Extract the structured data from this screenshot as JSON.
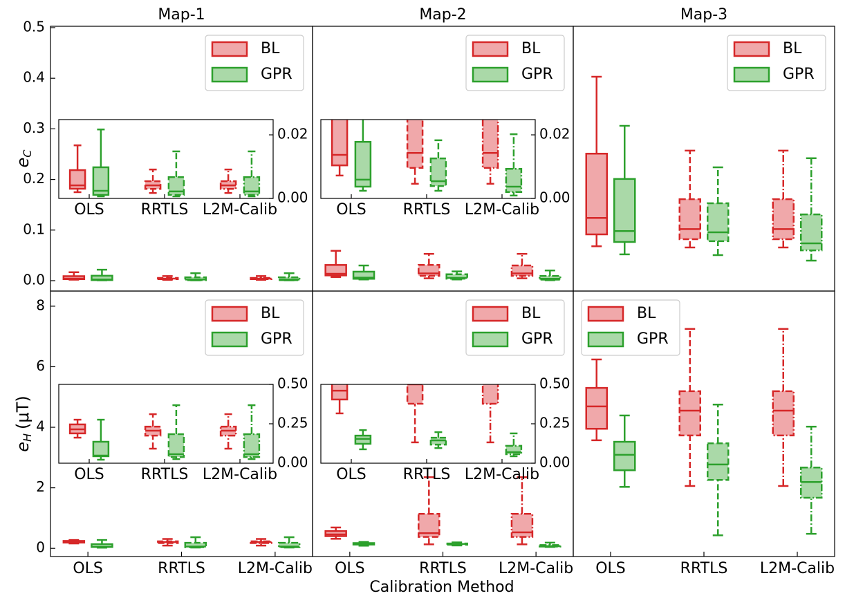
{
  "chart_data": [
    {
      "type": "box",
      "title": "Map-1",
      "ylabel": {
        "base": "e",
        "sub": "C"
      },
      "ylim": [
        -0.0205,
        0.5027
      ],
      "yticks": [
        {
          "value": 0,
          "label": "0.0"
        },
        0.1,
        0.2,
        0.3,
        0.4,
        0.5
      ],
      "legend": "upper right",
      "series": [
        {
          "name": "BL",
          "color": "#d62728",
          "fill": "#f0a8aa",
          "values": [
            [
              0.00196,
              0.00304,
              0.0041,
              0.0089,
              0.0167
            ],
            [
              0.0017,
              0.003,
              0.0041,
              0.0054,
              0.0091
            ],
            [
              0.0017,
              0.003,
              0.0041,
              0.0054,
              0.0091
            ]
          ]
        },
        {
          "name": "GPR",
          "color": "#2ca02c",
          "fill": "#aad9a8",
          "values": [
            [
              0.00065,
              0.0011,
              0.0024,
              0.0098,
              0.0217
            ],
            [
              0.00065,
              0.0011,
              0.0022,
              0.0067,
              0.0148
            ],
            [
              0.00065,
              0.0011,
              0.0022,
              0.0067,
              0.0148
            ]
          ]
        }
      ],
      "inset": {
        "categories": [
          "OLS",
          "RRTLS",
          "L2M-Calib"
        ],
        "ylim": [
          0,
          0.0248
        ],
        "yticks": [
          {
            "value": 0,
            "label": "0.00"
          },
          {
            "value": 0.02,
            "label": "0.02"
          }
        ]
      }
    },
    {
      "type": "box",
      "title": "Map-2",
      "ylim": [
        -0.0205,
        0.5027
      ],
      "legend": "upper right",
      "series": [
        {
          "name": "BL",
          "color": "#d62728",
          "fill": "#f0a8aa",
          "values": [
            [
              0.0072,
              0.0104,
              0.0137,
              0.031,
              0.059
            ],
            [
              0.0046,
              0.0096,
              0.0143,
              0.031,
              0.053
            ],
            [
              0.0046,
              0.0096,
              0.0143,
              0.03,
              0.053
            ]
          ]
        },
        {
          "name": "GPR",
          "color": "#2ca02c",
          "fill": "#aad9a8",
          "values": [
            [
              0.0024,
              0.0037,
              0.0059,
              0.0178,
              0.03
            ],
            [
              0.0024,
              0.0039,
              0.0054,
              0.0126,
              0.0183
            ],
            [
              0.0009,
              0.002,
              0.0037,
              0.0093,
              0.0202
            ]
          ]
        }
      ],
      "inset": {
        "categories": [
          "OLS",
          "RRTLS",
          "L2M-Calib"
        ],
        "ylim": [
          0,
          0.0248
        ],
        "yticks": [
          {
            "value": 0,
            "label": "0.00"
          },
          {
            "value": 0.02,
            "label": "0.02"
          }
        ]
      }
    },
    {
      "type": "box",
      "title": "Map-3",
      "ylim": [
        -0.0205,
        0.5027
      ],
      "legend": "upper right",
      "series": [
        {
          "name": "BL",
          "color": "#d62728",
          "fill": "#f0a8aa",
          "values": [
            [
              0.068,
              0.0915,
              0.124,
              0.251,
              0.403
            ],
            [
              0.0656,
              0.082,
              0.102,
              0.161,
              0.257
            ],
            [
              0.0656,
              0.082,
              0.102,
              0.161,
              0.257
            ]
          ]
        },
        {
          "name": "GPR",
          "color": "#2ca02c",
          "fill": "#aad9a8",
          "values": [
            [
              0.052,
              0.0765,
              0.098,
              0.201,
              0.306
            ],
            [
              0.0505,
              0.078,
              0.0956,
              0.153,
              0.224
            ],
            [
              0.0396,
              0.06,
              0.0738,
              0.131,
              0.242
            ]
          ]
        }
      ]
    },
    {
      "type": "box",
      "categories": [
        "OLS",
        "RRTLS",
        "L2M-Calib"
      ],
      "ylabel": {
        "base": "e",
        "sub": "H",
        "unit": "(μT)"
      },
      "ylim": [
        -0.27,
        8.5
      ],
      "yticks": [
        0,
        2,
        4,
        6,
        8
      ],
      "legend": "upper right",
      "series": [
        {
          "name": "BL",
          "color": "#d62728",
          "fill": "#f0a8aa",
          "values": [
            [
              0.162,
              0.189,
              0.215,
              0.246,
              0.276
            ],
            [
              0.092,
              0.175,
              0.206,
              0.232,
              0.311
            ],
            [
              0.092,
              0.175,
              0.206,
              0.232,
              0.311
            ]
          ]
        },
        {
          "name": "GPR",
          "color": "#2ca02c",
          "fill": "#aad9a8",
          "values": [
            [
              0.022,
              0.044,
              0.048,
              0.136,
              0.276
            ],
            [
              0.026,
              0.039,
              0.057,
              0.184,
              0.368
            ],
            [
              0.026,
              0.039,
              0.057,
              0.184,
              0.368
            ]
          ]
        }
      ],
      "inset": {
        "categories": [
          "OLS",
          "RRTLS",
          "L2M-Calib"
        ],
        "ylim": [
          0,
          0.5
        ],
        "yticks": [
          {
            "value": 0,
            "label": "0.00"
          },
          {
            "value": 0.25,
            "label": "0.25"
          },
          {
            "value": 0.5,
            "label": "0.50"
          }
        ]
      }
    },
    {
      "type": "box",
      "categories": [
        "OLS",
        "RRTLS",
        "L2M-Calib"
      ],
      "xlabel": "Calibration Method",
      "ylim": [
        -0.27,
        8.5
      ],
      "legend": "upper right",
      "series": [
        {
          "name": "BL",
          "color": "#d62728",
          "fill": "#f0a8aa",
          "values": [
            [
              0.316,
              0.404,
              0.46,
              0.57,
              0.69
            ],
            [
              0.132,
              0.377,
              0.5,
              1.14,
              2.35
            ],
            [
              0.132,
              0.377,
              0.53,
              1.14,
              2.35
            ]
          ]
        },
        {
          "name": "GPR",
          "color": "#2ca02c",
          "fill": "#aad9a8",
          "values": [
            [
              0.088,
              0.123,
              0.154,
              0.175,
              0.21
            ],
            [
              0.096,
              0.118,
              0.145,
              0.162,
              0.197
            ],
            [
              0.044,
              0.057,
              0.07,
              0.11,
              0.189
            ]
          ]
        }
      ],
      "inset": {
        "categories": [
          "OLS",
          "RRTLS",
          "L2M-Calib"
        ],
        "ylim": [
          0,
          0.5
        ],
        "yticks": [
          {
            "value": 0,
            "label": "0.00"
          },
          {
            "value": 0.25,
            "label": "0.25"
          },
          {
            "value": 0.5,
            "label": "0.50"
          }
        ]
      }
    },
    {
      "type": "box",
      "categories": [
        "OLS",
        "RRTLS",
        "L2M-Calib"
      ],
      "ylim": [
        -0.27,
        8.5
      ],
      "legend": "upper left",
      "series": [
        {
          "name": "BL",
          "color": "#d62728",
          "fill": "#f0a8aa",
          "values": [
            [
              3.57,
              3.95,
              4.69,
              5.3,
              6.24
            ],
            [
              2.06,
              3.73,
              4.55,
              5.19,
              7.25
            ],
            [
              2.06,
              3.73,
              4.55,
              5.19,
              7.25
            ]
          ]
        },
        {
          "name": "GPR",
          "color": "#2ca02c",
          "fill": "#aad9a8",
          "values": [
            [
              2.03,
              2.58,
              3.09,
              3.52,
              4.39
            ],
            [
              0.43,
              2.26,
              2.77,
              3.47,
              4.75
            ],
            [
              0.48,
              1.67,
              2.19,
              2.67,
              4.02
            ]
          ]
        }
      ]
    }
  ]
}
